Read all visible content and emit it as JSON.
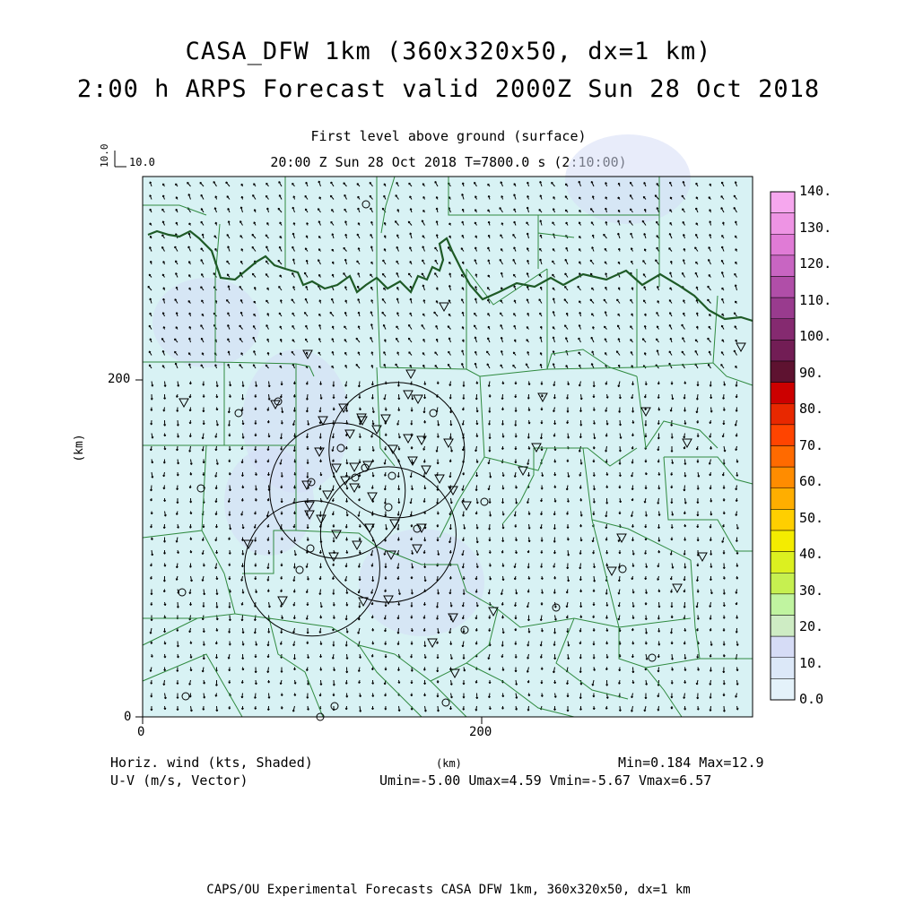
{
  "title": {
    "line1": "CASA_DFW 1km (360x320x50, dx=1 km)",
    "line2": "2:00 h ARPS Forecast valid 2000Z Sun 28 Oct 2018"
  },
  "subtitle": {
    "line1": "First level above ground (surface)",
    "line2": "20:00 Z Sun 28 Oct 2018   T=7800.0 s (2:10:00)"
  },
  "reference_vector": {
    "vertical_label": "10.0",
    "horizontal_label": "10.0"
  },
  "axes": {
    "x_label": "(km)",
    "y_label": "(km)",
    "x_ticks": [
      "0",
      "200"
    ],
    "y_ticks": [
      "0",
      "200"
    ],
    "x_range_km": [
      0,
      360
    ],
    "y_range_km": [
      0,
      320
    ]
  },
  "colorbar": {
    "labels": [
      "140.",
      "130.",
      "120.",
      "110.",
      "100.",
      "90.",
      "80.",
      "70.",
      "60.",
      "50.",
      "40.",
      "30.",
      "20.",
      "10.",
      "0.0"
    ],
    "colors": [
      "#f6a7ee",
      "#ee94e4",
      "#e07bd6",
      "#c865c2",
      "#b04ea8",
      "#993b8e",
      "#852a70",
      "#721d55",
      "#5e1230",
      "#cc0000",
      "#e82800",
      "#ff4400",
      "#ff6a00",
      "#ff8c00",
      "#ffae00",
      "#ffcf00",
      "#f4ec00",
      "#dcf020",
      "#c6f050",
      "#c0f4a0",
      "#ceecc4",
      "#d6dcf6",
      "#dce8f8",
      "#e4f2fa"
    ]
  },
  "legend": {
    "left1": "Horiz. wind (kts, Shaded)",
    "left2": "U-V (m/s, Vector)",
    "center": "(km)",
    "right1": "Min=0.184 Max=12.9",
    "right2": "Umin=-5.00 Umax=4.59 Vmin=-5.67 Vmax=6.57"
  },
  "footer": "CAPS/OU Experimental Forecasts  CASA DFW 1km, 360x320x50, dx=1 km",
  "map": {
    "background_color": "#d8f2f4",
    "boundary_color": "#2f8a3f",
    "river_color": "#1e5a26",
    "radar_range_km": 40,
    "radars_km": [
      {
        "name": "r1",
        "cx": 150,
        "cy": 158
      },
      {
        "name": "r2",
        "cx": 115,
        "cy": 134
      },
      {
        "name": "r3",
        "cx": 145,
        "cy": 108
      },
      {
        "name": "r4",
        "cx": 100,
        "cy": 88
      }
    ]
  }
}
